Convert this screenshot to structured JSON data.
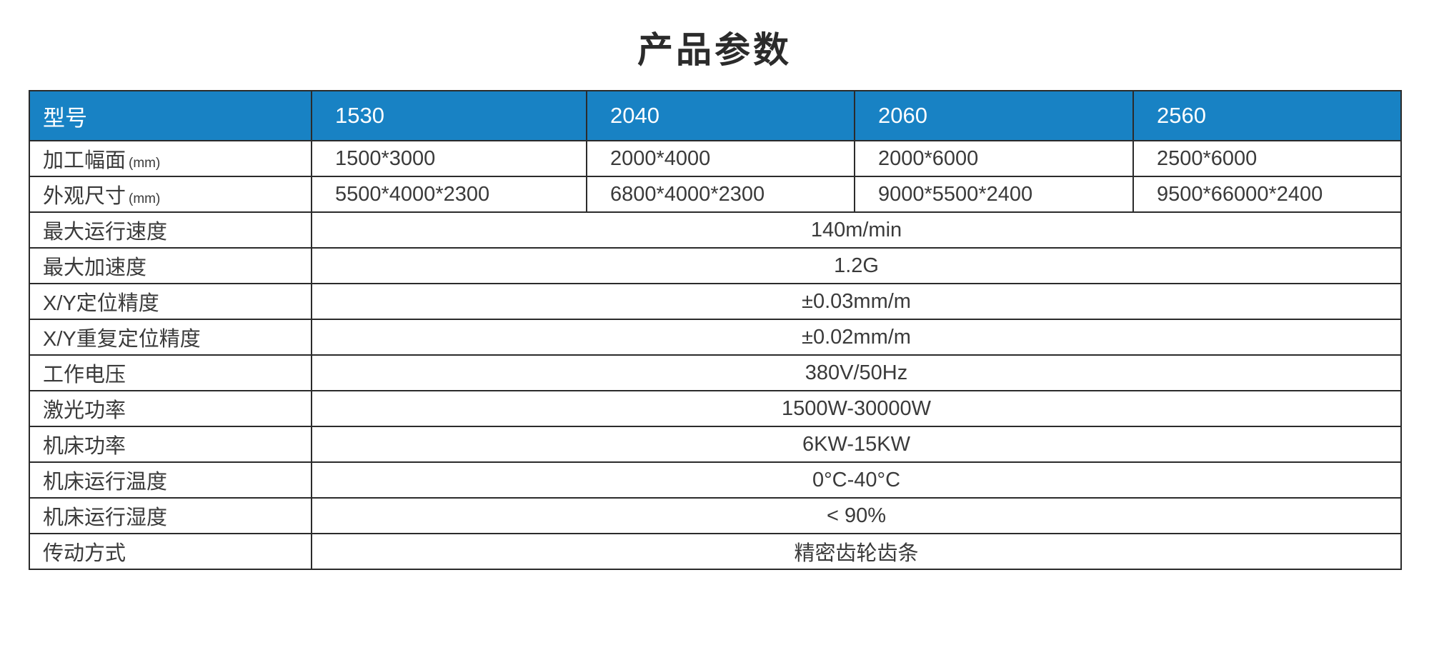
{
  "page": {
    "title": "产品参数"
  },
  "table": {
    "colors": {
      "header_bg": "#1882c4",
      "header_text": "#ffffff",
      "border": "#2b2b2b",
      "text": "#3a3a3a"
    },
    "header": {
      "label": "型号",
      "models": [
        "1530",
        "2040",
        "2060",
        "2560"
      ]
    },
    "rows": [
      {
        "label": "加工幅面",
        "suffix": "(mm)",
        "values": [
          "1500*3000",
          "2000*4000",
          "2000*6000",
          "2500*6000"
        ]
      },
      {
        "label": "外观尺寸",
        "suffix": "(mm)",
        "values": [
          "5500*4000*2300",
          "6800*4000*2300",
          "9000*5500*2400",
          "9500*66000*2400"
        ]
      },
      {
        "label": "最大运行速度",
        "value": "140m/min"
      },
      {
        "label": "最大加速度",
        "value": "1.2G"
      },
      {
        "label": "X/Y定位精度",
        "value": "±0.03mm/m"
      },
      {
        "label": "X/Y重复定位精度",
        "value": "±0.02mm/m"
      },
      {
        "label": "工作电压",
        "value": "380V/50Hz"
      },
      {
        "label": "激光功率",
        "value": "1500W-30000W"
      },
      {
        "label": "机床功率",
        "value": "6KW-15KW"
      },
      {
        "label": "机床运行温度",
        "value": "0°C-40°C"
      },
      {
        "label": "机床运行湿度",
        "value": "< 90%"
      },
      {
        "label": "传动方式",
        "value": "精密齿轮齿条"
      }
    ]
  }
}
